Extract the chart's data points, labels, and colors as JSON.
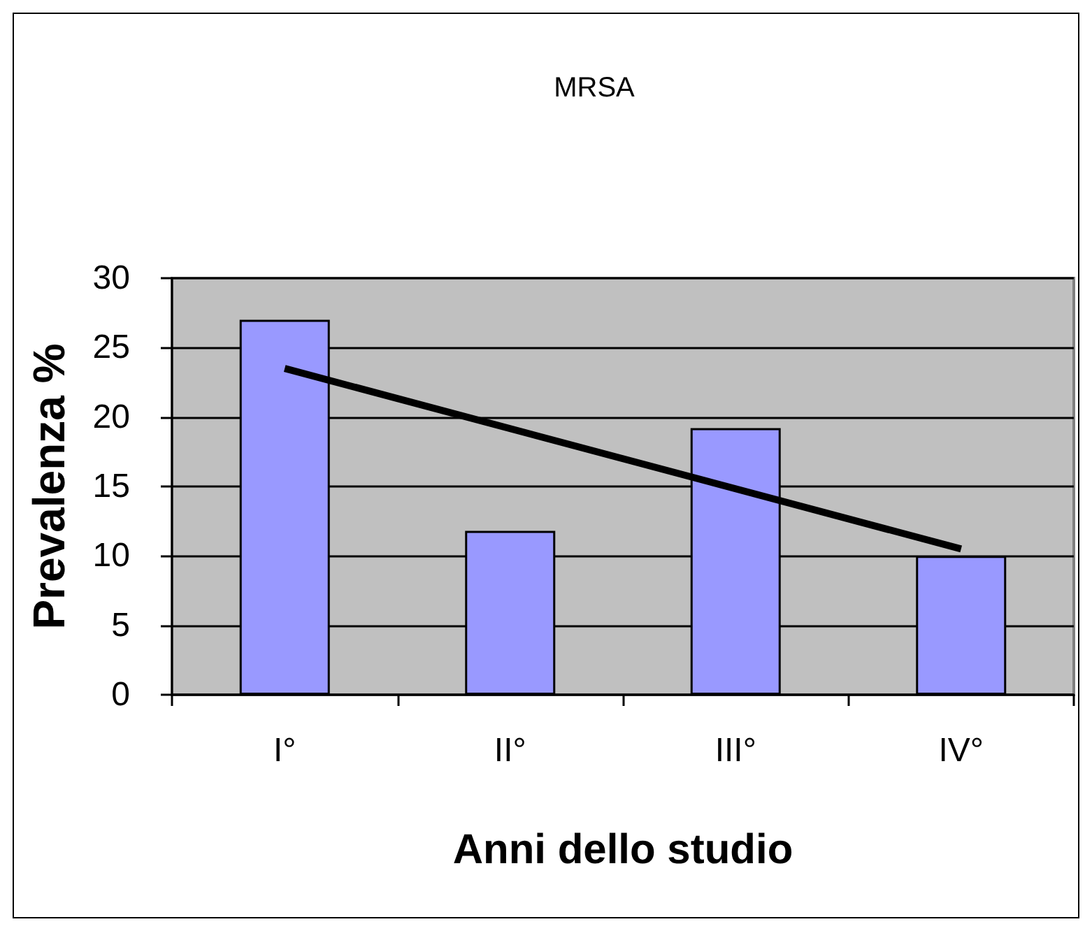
{
  "chart_data": {
    "type": "bar",
    "title": "MRSA",
    "xlabel": "Anni dello studio",
    "ylabel": "Prevalenza %",
    "categories": [
      "I°",
      "II°",
      "III°",
      "IV°"
    ],
    "series": [
      {
        "color": "#9999ff",
        "values": [
          27,
          11.8,
          19.2,
          10
        ]
      },
      {
        "type": "line",
        "color": "#000000",
        "x": [
          "I°",
          "IV°"
        ],
        "values": [
          23.5,
          10.5
        ]
      }
    ],
    "ylim": [
      0,
      30
    ],
    "yticks": [
      0,
      5,
      10,
      15,
      20,
      25,
      30
    ],
    "grid": "y",
    "marker": "none",
    "line_style": "solid"
  }
}
